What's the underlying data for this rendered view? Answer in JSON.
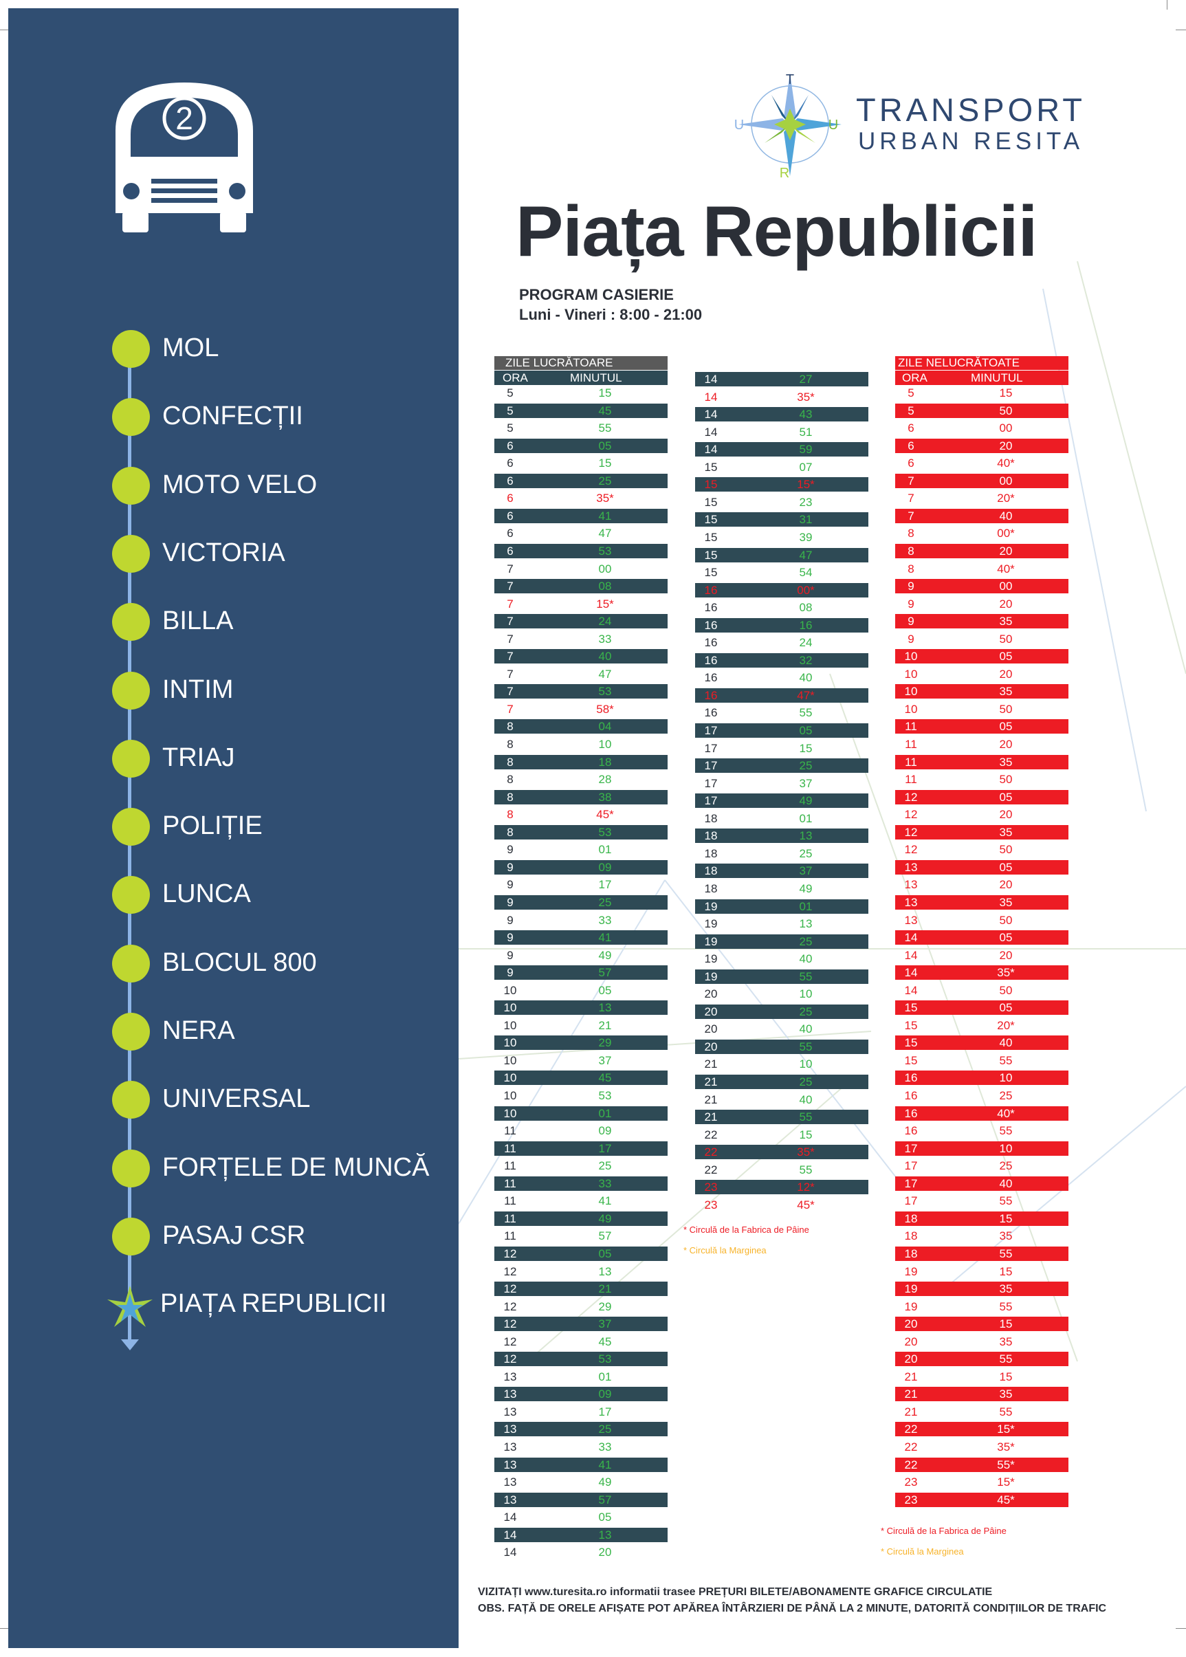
{
  "route": {
    "number": "2",
    "stops": [
      "MOL",
      "CONFECȚII",
      "MOTO VELO",
      "VICTORIA",
      "BILLA",
      "INTIM",
      "TRIAJ",
      "POLIȚIE",
      "LUNCA",
      "BLOCUL 800",
      "NERA",
      "UNIVERSAL",
      "FORȚELE DE MUNCĂ",
      "PASAJ CSR",
      "PIAȚA REPUBLICII"
    ]
  },
  "brand": {
    "line1": "TRANSPORT",
    "line2": "URBAN RESITA",
    "logo_letters": {
      "top": "T",
      "left": "U",
      "right": "U",
      "bottom": "R"
    }
  },
  "header": {
    "title": "Piața Republicii",
    "cashier_title": "PROGRAM CASIERIE",
    "cashier_hours": "Luni - Vineri : 8:00 - 21:00"
  },
  "colors": {
    "sidebar": "#304e72",
    "stop_dot": "#bfd730",
    "route_line": "#8db4e6",
    "weekday_dark_row": "#2e4a55",
    "weekday_header": "#5a5a5a",
    "weekend_red": "#ed1c24",
    "green_minute": "#39b54a",
    "red_note": "#ed1c24",
    "yellow_note": "#f7b32b"
  },
  "weekday": {
    "title": "ZILE LUCRĂTOARE",
    "col_hour": "ORA",
    "col_minute": "MINUTUL",
    "rows": [
      [
        "5",
        "15"
      ],
      [
        "5",
        "45"
      ],
      [
        "5",
        "55"
      ],
      [
        "6",
        "05"
      ],
      [
        "6",
        "15"
      ],
      [
        "6",
        "25"
      ],
      [
        "6",
        "35*"
      ],
      [
        "6",
        "41"
      ],
      [
        "6",
        "47"
      ],
      [
        "6",
        "53"
      ],
      [
        "7",
        "00"
      ],
      [
        "7",
        "08"
      ],
      [
        "7",
        "15*"
      ],
      [
        "7",
        "24"
      ],
      [
        "7",
        "33"
      ],
      [
        "7",
        "40"
      ],
      [
        "7",
        "47"
      ],
      [
        "7",
        "53"
      ],
      [
        "7",
        "58*"
      ],
      [
        "8",
        "04"
      ],
      [
        "8",
        "10"
      ],
      [
        "8",
        "18"
      ],
      [
        "8",
        "28"
      ],
      [
        "8",
        "38"
      ],
      [
        "8",
        "45*"
      ],
      [
        "8",
        "53"
      ],
      [
        "9",
        "01"
      ],
      [
        "9",
        "09"
      ],
      [
        "9",
        "17"
      ],
      [
        "9",
        "25"
      ],
      [
        "9",
        "33"
      ],
      [
        "9",
        "41"
      ],
      [
        "9",
        "49"
      ],
      [
        "9",
        "57"
      ],
      [
        "10",
        "05"
      ],
      [
        "10",
        "13"
      ],
      [
        "10",
        "21"
      ],
      [
        "10",
        "29"
      ],
      [
        "10",
        "37"
      ],
      [
        "10",
        "45"
      ],
      [
        "10",
        "53"
      ],
      [
        "10",
        "01"
      ],
      [
        "11",
        "09"
      ],
      [
        "11",
        "17"
      ],
      [
        "11",
        "25"
      ],
      [
        "11",
        "33"
      ],
      [
        "11",
        "41"
      ],
      [
        "11",
        "49"
      ],
      [
        "11",
        "57"
      ],
      [
        "12",
        "05"
      ],
      [
        "12",
        "13"
      ],
      [
        "12",
        "21"
      ],
      [
        "12",
        "29"
      ],
      [
        "12",
        "37"
      ],
      [
        "12",
        "45"
      ],
      [
        "12",
        "53"
      ],
      [
        "13",
        "01"
      ],
      [
        "13",
        "09"
      ],
      [
        "13",
        "17"
      ],
      [
        "13",
        "25"
      ],
      [
        "13",
        "33"
      ],
      [
        "13",
        "41"
      ],
      [
        "13",
        "49"
      ],
      [
        "13",
        "57"
      ],
      [
        "14",
        "05"
      ],
      [
        "14",
        "13"
      ],
      [
        "14",
        "20"
      ]
    ],
    "rows_cont": [
      [
        "14",
        "27"
      ],
      [
        "14",
        "35*"
      ],
      [
        "14",
        "43"
      ],
      [
        "14",
        "51"
      ],
      [
        "14",
        "59"
      ],
      [
        "15",
        "07"
      ],
      [
        "15",
        "15*"
      ],
      [
        "15",
        "23"
      ],
      [
        "15",
        "31"
      ],
      [
        "15",
        "39"
      ],
      [
        "15",
        "47"
      ],
      [
        "15",
        "54"
      ],
      [
        "16",
        "00*"
      ],
      [
        "16",
        "08"
      ],
      [
        "16",
        "16"
      ],
      [
        "16",
        "24"
      ],
      [
        "16",
        "32"
      ],
      [
        "16",
        "40"
      ],
      [
        "16",
        "47*"
      ],
      [
        "16",
        "55"
      ],
      [
        "17",
        "05"
      ],
      [
        "17",
        "15"
      ],
      [
        "17",
        "25"
      ],
      [
        "17",
        "37"
      ],
      [
        "17",
        "49"
      ],
      [
        "18",
        "01"
      ],
      [
        "18",
        "13"
      ],
      [
        "18",
        "25"
      ],
      [
        "18",
        "37"
      ],
      [
        "18",
        "49"
      ],
      [
        "19",
        "01"
      ],
      [
        "19",
        "13"
      ],
      [
        "19",
        "25"
      ],
      [
        "19",
        "40"
      ],
      [
        "19",
        "55"
      ],
      [
        "20",
        "10"
      ],
      [
        "20",
        "25"
      ],
      [
        "20",
        "40"
      ],
      [
        "20",
        "55"
      ],
      [
        "21",
        "10"
      ],
      [
        "21",
        "25"
      ],
      [
        "21",
        "40"
      ],
      [
        "21",
        "55"
      ],
      [
        "22",
        "15"
      ],
      [
        "22",
        "35*"
      ],
      [
        "22",
        "55"
      ],
      [
        "23",
        "12*"
      ],
      [
        "23",
        "45*"
      ]
    ],
    "note_red": "* Circulă de la Fabrica de Pâine",
    "note_yellow": "* Circulă la Marginea"
  },
  "weekend": {
    "title": "ZILE NELUCRĂTOATE",
    "col_hour": "ORA",
    "col_minute": "MINUTUL",
    "rows": [
      [
        "5",
        "15"
      ],
      [
        "5",
        "50"
      ],
      [
        "6",
        "00"
      ],
      [
        "6",
        "20"
      ],
      [
        "6",
        "40*"
      ],
      [
        "7",
        "00"
      ],
      [
        "7",
        "20*"
      ],
      [
        "7",
        "40"
      ],
      [
        "8",
        "00*"
      ],
      [
        "8",
        "20"
      ],
      [
        "8",
        "40*"
      ],
      [
        "9",
        "00"
      ],
      [
        "9",
        "20"
      ],
      [
        "9",
        "35"
      ],
      [
        "9",
        "50"
      ],
      [
        "10",
        "05"
      ],
      [
        "10",
        "20"
      ],
      [
        "10",
        "35"
      ],
      [
        "10",
        "50"
      ],
      [
        "11",
        "05"
      ],
      [
        "11",
        "20"
      ],
      [
        "11",
        "35"
      ],
      [
        "11",
        "50"
      ],
      [
        "12",
        "05"
      ],
      [
        "12",
        "20"
      ],
      [
        "12",
        "35"
      ],
      [
        "12",
        "50"
      ],
      [
        "13",
        "05"
      ],
      [
        "13",
        "20"
      ],
      [
        "13",
        "35"
      ],
      [
        "13",
        "50"
      ],
      [
        "14",
        "05"
      ],
      [
        "14",
        "20"
      ],
      [
        "14",
        "35*"
      ],
      [
        "14",
        "50"
      ],
      [
        "15",
        "05"
      ],
      [
        "15",
        "20*"
      ],
      [
        "15",
        "40"
      ],
      [
        "15",
        "55"
      ],
      [
        "16",
        "10"
      ],
      [
        "16",
        "25"
      ],
      [
        "16",
        "40*"
      ],
      [
        "16",
        "55"
      ],
      [
        "17",
        "10"
      ],
      [
        "17",
        "25"
      ],
      [
        "17",
        "40"
      ],
      [
        "17",
        "55"
      ],
      [
        "18",
        "15"
      ],
      [
        "18",
        "35"
      ],
      [
        "18",
        "55"
      ],
      [
        "19",
        "15"
      ],
      [
        "19",
        "35"
      ],
      [
        "19",
        "55"
      ],
      [
        "20",
        "15"
      ],
      [
        "20",
        "35"
      ],
      [
        "20",
        "55"
      ],
      [
        "21",
        "15"
      ],
      [
        "21",
        "35"
      ],
      [
        "21",
        "55"
      ],
      [
        "22",
        "15*"
      ],
      [
        "22",
        "35*"
      ],
      [
        "22",
        "55*"
      ],
      [
        "23",
        "15*"
      ],
      [
        "23",
        "45*"
      ]
    ],
    "note_red": "* Circulă de la Fabrica de Pâine",
    "note_yellow": "* Circulă la Marginea"
  },
  "footer": {
    "line1": "VIZITAȚI www.turesita.ro informatii trasee PREȚURI BILETE/ABONAMENTE GRAFICE CIRCULATIE",
    "line2": "OBS. FAȚĂ DE ORELE AFIȘATE POT APĂREA ÎNTÂRZIERI DE PÂNĂ LA 2 MINUTE, DATORITĂ CONDIȚIILOR DE TRAFIC"
  }
}
